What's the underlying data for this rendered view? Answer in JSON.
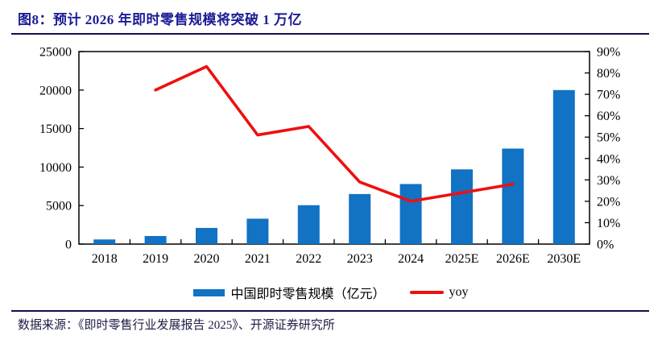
{
  "page": {
    "title": "图8：预计 2026 年即时零售规模将突破 1 万亿",
    "source_note": "数据来源：《即时零售行业发展报告 2025》、开源证券研究所"
  },
  "colors": {
    "title_navy": "#1b1b96",
    "bar_blue": "#1272C3",
    "line_red": "#EE1010",
    "axis_black": "#000000"
  },
  "legend": {
    "items": [
      {
        "label": "中国即时零售规模（亿元）",
        "swatch": "bar",
        "color": "#1272C3"
      },
      {
        "label": "yoy",
        "swatch": "line",
        "color": "#EE1010"
      }
    ]
  },
  "chart_data": {
    "type": "bar",
    "subtype": "bar+line combo, dual axis",
    "categories": [
      "2018",
      "2019",
      "2020",
      "2021",
      "2022",
      "2023",
      "2024",
      "2025E",
      "2026E",
      "2030E"
    ],
    "series": [
      {
        "name": "中国即时零售规模（亿元）",
        "type": "bar",
        "axis": "left",
        "color": "#1272C3",
        "values": [
          600,
          1050,
          2100,
          3300,
          5050,
          6500,
          7800,
          9700,
          12400,
          20000
        ]
      },
      {
        "name": "yoy",
        "type": "line",
        "axis": "right",
        "color": "#EE1010",
        "unit": "%",
        "values": [
          null,
          72,
          83,
          51,
          55,
          29,
          20,
          24,
          28,
          null
        ]
      }
    ],
    "left_axis": {
      "min": 0,
      "max": 25000,
      "step": 5000,
      "tick_labels": [
        "0",
        "5000",
        "10000",
        "15000",
        "20000",
        "25000"
      ]
    },
    "right_axis": {
      "min": 0,
      "max": 90,
      "step": 10,
      "tick_labels": [
        "0%",
        "10%",
        "20%",
        "30%",
        "40%",
        "50%",
        "60%",
        "70%",
        "80%",
        "90%"
      ]
    },
    "grid": "off",
    "plot_border": "full box, inward ticks",
    "legend_position": "bottom center",
    "title": "预计 2026 年即时零售规模将突破 1 万亿"
  }
}
